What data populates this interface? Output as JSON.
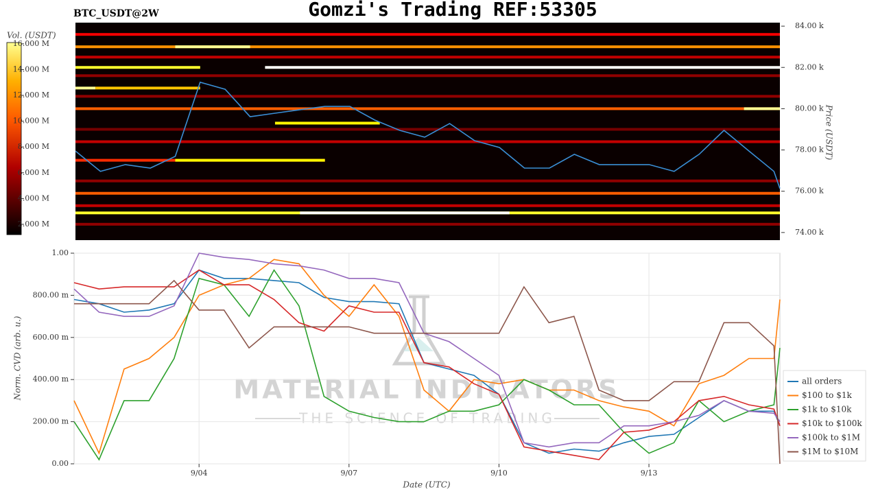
{
  "watermark": {
    "title": "MATERIAL INDICATORS",
    "subtitle": "THE SCIENCE OF TRADING"
  },
  "chart_data": [
    {
      "type": "heatmap",
      "title": "Gomzi's Trading REF:53305",
      "subtitle": "BTC_USDT@2W",
      "ylabel": "Price (USDT)",
      "colorbar_label": "Vol. (USDT)",
      "xlim": [
        1.5,
        15.62
      ],
      "ylim": [
        73630,
        84170
      ],
      "yticks": [
        {
          "value": 74000,
          "label": "74.00 k"
        },
        {
          "value": 76000,
          "label": "76.00 k"
        },
        {
          "value": 78000,
          "label": "78.00 k"
        },
        {
          "value": 80000,
          "label": "80.00 k"
        },
        {
          "value": 82000,
          "label": "82.00 k"
        },
        {
          "value": 84000,
          "label": "84.00 k"
        }
      ],
      "clim": [
        1200000,
        16100000
      ],
      "cticks": [
        {
          "value": 2000000,
          "label": "2.000 M"
        },
        {
          "value": 4000000,
          "label": "4.000 M"
        },
        {
          "value": 6000000,
          "label": "6.000 M"
        },
        {
          "value": 8000000,
          "label": "8.000 M"
        },
        {
          "value": 10000000,
          "label": "10.000 M"
        },
        {
          "value": 12000000,
          "label": "12.000 M"
        },
        {
          "value": 14000000,
          "label": "14.000 M"
        },
        {
          "value": 16000000,
          "label": "16.000 M"
        }
      ],
      "bands": [
        {
          "price": 83600,
          "from": 1.5,
          "to": 15.62,
          "volume": 6000000
        },
        {
          "price": 83000,
          "from": 1.5,
          "to": 15.62,
          "volume": 9000000
        },
        {
          "price": 82500,
          "from": 1.5,
          "to": 15.62,
          "volume": 5000000
        },
        {
          "price": 81600,
          "from": 1.5,
          "to": 15.62,
          "volume": 4000000
        },
        {
          "price": 80600,
          "from": 1.5,
          "to": 15.62,
          "volume": 4000000
        },
        {
          "price": 80000,
          "from": 1.5,
          "to": 15.62,
          "volume": 8000000
        },
        {
          "price": 79000,
          "from": 1.5,
          "to": 15.62,
          "volume": 3500000
        },
        {
          "price": 78400,
          "from": 1.5,
          "to": 15.62,
          "volume": 5000000
        },
        {
          "price": 77500,
          "from": 1.5,
          "to": 6.5,
          "volume": 7000000
        },
        {
          "price": 76500,
          "from": 1.5,
          "to": 15.62,
          "volume": 4000000
        },
        {
          "price": 75900,
          "from": 1.5,
          "to": 15.62,
          "volume": 8000000
        },
        {
          "price": 75300,
          "from": 1.5,
          "to": 15.62,
          "volume": 5000000
        },
        {
          "price": 74950,
          "from": 1.5,
          "to": 15.62,
          "volume": 12000000
        },
        {
          "price": 74400,
          "from": 1.5,
          "to": 15.62,
          "volume": 4000000
        },
        {
          "price": 83000,
          "from": 3.5,
          "to": 5,
          "volume": 14000000
        },
        {
          "price": 82000,
          "from": 1.5,
          "to": 4,
          "volume": 12000000
        },
        {
          "price": 82000,
          "from": 5.3,
          "to": 15.62,
          "volume": 16000000
        },
        {
          "price": 81000,
          "from": 1.5,
          "to": 1.9,
          "volume": 14000000
        },
        {
          "price": 81000,
          "from": 1.9,
          "to": 4,
          "volume": 10000000
        },
        {
          "price": 80000,
          "from": 14.9,
          "to": 15.62,
          "volume": 14000000
        },
        {
          "price": 79300,
          "from": 5.5,
          "to": 7.6,
          "volume": 11000000
        },
        {
          "price": 77500,
          "from": 3.5,
          "to": 6.5,
          "volume": 11000000
        },
        {
          "price": 74950,
          "from": 6,
          "to": 10.2,
          "volume": 16000000
        }
      ],
      "price_line": {
        "color": "#3a8fd6",
        "x": [
          1.5,
          2,
          2.5,
          3,
          3.5,
          4,
          4.5,
          5,
          5.5,
          6,
          6.5,
          7,
          7.5,
          8,
          8.5,
          9,
          9.5,
          10,
          10.5,
          11,
          11.5,
          12,
          12.5,
          13,
          13.5,
          14,
          14.5,
          15,
          15.5,
          15.62
        ],
        "values": [
          77950,
          76960,
          77290,
          77120,
          77690,
          81280,
          80940,
          79610,
          79780,
          79950,
          80110,
          80110,
          79450,
          78950,
          78620,
          79280,
          78450,
          78120,
          77120,
          77120,
          77790,
          77290,
          77290,
          77290,
          76960,
          77790,
          78950,
          77950,
          76960,
          76130
        ]
      }
    },
    {
      "type": "line",
      "ylabel": "Norm. CVD (arb. u.)",
      "xlabel": "Date (UTC)",
      "xlim": [
        1.5,
        15.62
      ],
      "ylim": [
        0,
        1
      ],
      "grid": true,
      "xticks": [
        {
          "value": 4,
          "label": "9/04"
        },
        {
          "value": 7,
          "label": "9/07"
        },
        {
          "value": 10,
          "label": "9/10"
        },
        {
          "value": 13,
          "label": "9/13"
        }
      ],
      "yticks": [
        {
          "value": 0,
          "label": "0.00"
        },
        {
          "value": 0.2,
          "label": "200.00 m"
        },
        {
          "value": 0.4,
          "label": "400.00 m"
        },
        {
          "value": 0.6,
          "label": "600.00 m"
        },
        {
          "value": 0.8,
          "label": "800.00 m"
        },
        {
          "value": 1,
          "label": "1.00"
        }
      ],
      "legend": "lower right",
      "x": [
        1.5,
        2,
        2.5,
        3,
        3.5,
        4,
        4.5,
        5,
        5.5,
        6,
        6.5,
        7,
        7.5,
        8,
        8.5,
        9,
        9.5,
        10,
        10.5,
        11,
        11.5,
        12,
        12.5,
        13,
        13.5,
        14,
        14.5,
        15,
        15.5,
        15.62
      ],
      "series": [
        {
          "name": "all orders",
          "color": "#1f77b4",
          "values": [
            0.78,
            0.76,
            0.72,
            0.73,
            0.76,
            0.92,
            0.88,
            0.88,
            0.87,
            0.86,
            0.79,
            0.77,
            0.77,
            0.76,
            0.48,
            0.45,
            0.42,
            0.33,
            0.1,
            0.05,
            0.07,
            0.06,
            0.1,
            0.13,
            0.14,
            0.22,
            0.3,
            0.25,
            0.25,
            0.18
          ]
        },
        {
          "name": "$100 to $1k",
          "color": "#ff7f0e",
          "values": [
            0.3,
            0.05,
            0.45,
            0.5,
            0.6,
            0.8,
            0.85,
            0.88,
            0.97,
            0.95,
            0.8,
            0.7,
            0.85,
            0.7,
            0.35,
            0.25,
            0.4,
            0.38,
            0.4,
            0.35,
            0.35,
            0.3,
            0.27,
            0.25,
            0.18,
            0.38,
            0.42,
            0.5,
            0.5,
            0.78
          ]
        },
        {
          "name": "$1k to $10k",
          "color": "#2ca02c",
          "values": [
            0.2,
            0.02,
            0.3,
            0.3,
            0.5,
            0.88,
            0.85,
            0.7,
            0.92,
            0.75,
            0.32,
            0.25,
            0.22,
            0.2,
            0.2,
            0.25,
            0.25,
            0.28,
            0.4,
            0.35,
            0.28,
            0.28,
            0.15,
            0.05,
            0.1,
            0.3,
            0.2,
            0.25,
            0.28,
            0.55
          ]
        },
        {
          "name": "$10k to $100k",
          "color": "#d62728",
          "values": [
            0.86,
            0.83,
            0.84,
            0.84,
            0.84,
            0.92,
            0.85,
            0.85,
            0.78,
            0.67,
            0.63,
            0.75,
            0.72,
            0.72,
            0.48,
            0.46,
            0.38,
            0.33,
            0.08,
            0.06,
            0.04,
            0.02,
            0.15,
            0.16,
            0.2,
            0.3,
            0.32,
            0.28,
            0.26,
            0.18
          ]
        },
        {
          "name": "$100k to $1M",
          "color": "#9467bd",
          "values": [
            0.83,
            0.72,
            0.7,
            0.7,
            0.75,
            1,
            0.98,
            0.97,
            0.95,
            0.94,
            0.92,
            0.88,
            0.88,
            0.86,
            0.62,
            0.58,
            0.5,
            0.42,
            0.1,
            0.08,
            0.1,
            0.1,
            0.18,
            0.18,
            0.2,
            0.23,
            0.3,
            0.25,
            0.24,
            0.2
          ]
        },
        {
          "name": "$1M to $10M",
          "color": "#8c564b",
          "values": [
            0.76,
            0.76,
            0.76,
            0.76,
            0.87,
            0.73,
            0.73,
            0.55,
            0.65,
            0.65,
            0.65,
            0.65,
            0.62,
            0.62,
            0.62,
            0.62,
            0.62,
            0.62,
            0.84,
            0.67,
            0.7,
            0.35,
            0.3,
            0.3,
            0.39,
            0.39,
            0.67,
            0.67,
            0.56,
            0
          ]
        }
      ]
    }
  ]
}
